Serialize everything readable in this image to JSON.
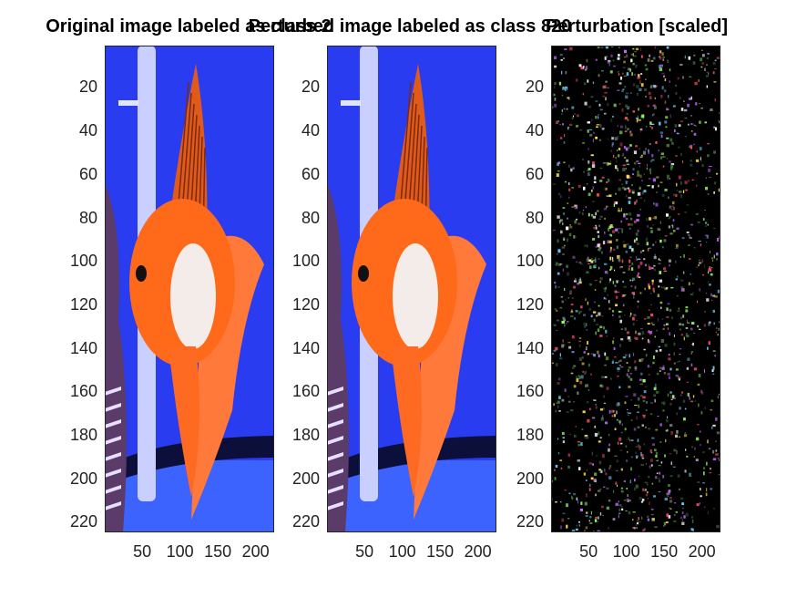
{
  "figure": {
    "panels": [
      {
        "title": "Original image labeled as class 2",
        "content": "goldfish-photo"
      },
      {
        "title": "Perturbed image labeled as class 820",
        "content": "goldfish-photo"
      },
      {
        "title": "Perturbation [scaled]",
        "content": "noise-map"
      }
    ],
    "y_ticks": [
      "20",
      "40",
      "60",
      "80",
      "100",
      "120",
      "140",
      "160",
      "180",
      "200",
      "220"
    ],
    "x_ticks": [
      "50",
      "100",
      "150",
      "200"
    ],
    "y_tick_values": [
      20,
      40,
      60,
      80,
      100,
      120,
      140,
      160,
      180,
      200,
      220
    ],
    "x_tick_values": [
      50,
      100,
      150,
      200
    ],
    "image_extent": {
      "width": 224,
      "height": 224
    },
    "colors": {
      "water": "#2a3cf0",
      "fish_orange": "#ff6a1a",
      "fish_white": "#f3ece8",
      "pipe": "#c9d0ff",
      "noise_bg": "#000000"
    }
  }
}
